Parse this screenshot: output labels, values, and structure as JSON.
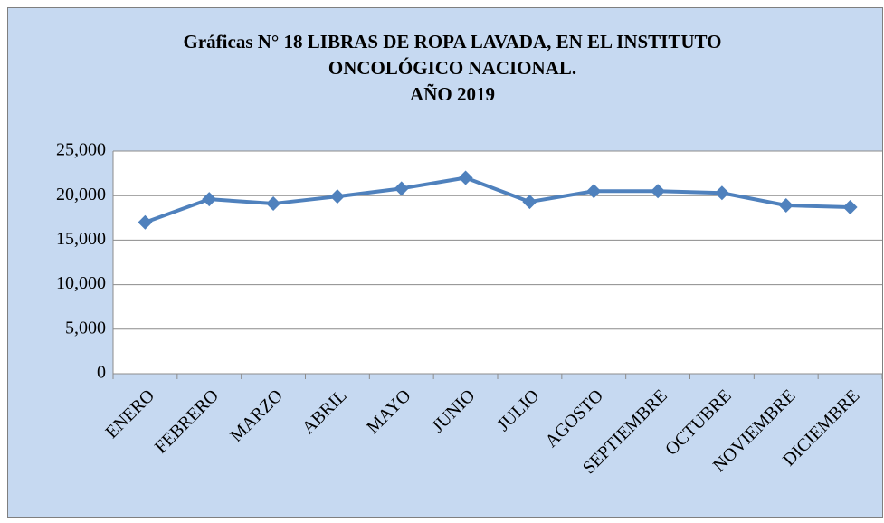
{
  "chart_data": {
    "type": "line",
    "title": [
      "Gráficas N° 18 LIBRAS DE ROPA LAVADA, EN EL INSTITUTO",
      "ONCOLÓGICO NACIONAL.",
      "AÑO 2019"
    ],
    "categories": [
      "ENERO",
      "FEBRERO",
      "MARZO",
      "ABRIL",
      "MAYO",
      "JUNIO",
      "JULIO",
      "AGOSTO",
      "SEPTIEMBRE",
      "OCTUBRE",
      "NOVIEMBRE",
      "DICIEMBRE"
    ],
    "series": [
      {
        "color": "#4f81bd",
        "values": [
          17000,
          19600,
          19100,
          19900,
          20800,
          22000,
          19300,
          20500,
          20500,
          20300,
          18900,
          18700
        ]
      }
    ],
    "ylim": [
      0,
      25000
    ],
    "yticks": [
      0,
      {
        "value": 5000,
        "label": "5,000"
      },
      {
        "value": 10000,
        "label": "10,000"
      },
      {
        "value": 15000,
        "label": "15,000"
      },
      {
        "value": 20000,
        "label": "20,000"
      },
      {
        "value": 25000,
        "label": "25,000"
      }
    ],
    "grid": true
  }
}
